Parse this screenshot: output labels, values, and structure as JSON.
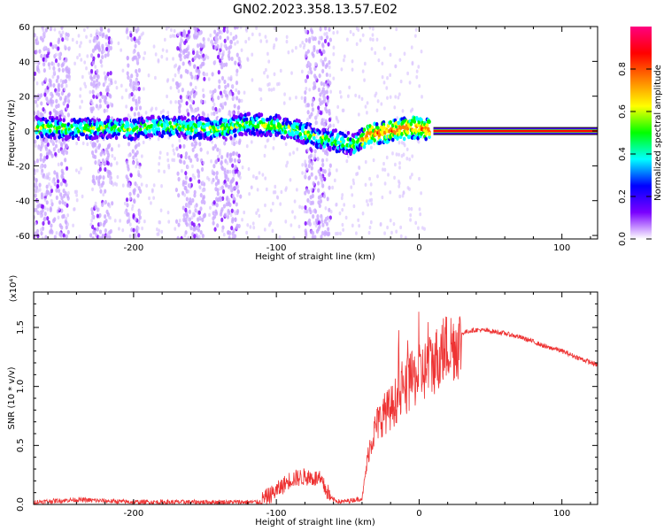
{
  "title": "GN02.2023.358.13.57.E02",
  "chart_data": [
    {
      "type": "heatmap",
      "xlabel": "Height of straight line (km)",
      "ylabel": "Frequency (Hz)",
      "xlim": [
        -270,
        125
      ],
      "ylim": [
        -62,
        60
      ],
      "x_ticks": [
        -200,
        -100,
        0,
        100
      ],
      "x_tick_labels": [
        "-200",
        "-100",
        "0",
        "100"
      ],
      "y_ticks": [
        -60,
        -40,
        -20,
        0,
        20,
        40,
        60
      ],
      "y_tick_labels": [
        "-60",
        "-40",
        "-20",
        "0",
        "20",
        "40",
        "60"
      ],
      "colorbar": {
        "label": "Normalized spectral amplitude",
        "range": [
          0,
          1
        ],
        "ticks": [
          0.0,
          0.2,
          0.4,
          0.6,
          0.8
        ],
        "tick_labels": [
          "0.0",
          "0.2",
          "0.4",
          "0.6",
          "0.8"
        ],
        "colormap": [
          "#ffffff",
          "#7a00ff",
          "#0000ff",
          "#00ffff",
          "#00ff00",
          "#ffff00",
          "#ff8000",
          "#ff0000",
          "#ff0080"
        ]
      },
      "signal_band": {
        "description_free": true,
        "center_hz": 0,
        "points": [
          [
            -265,
            2
          ],
          [
            -240,
            1
          ],
          [
            -220,
            2
          ],
          [
            -200,
            1
          ],
          [
            -180,
            3
          ],
          [
            -160,
            2
          ],
          [
            -140,
            1
          ],
          [
            -120,
            4
          ],
          [
            -100,
            3
          ],
          [
            -85,
            0
          ],
          [
            -70,
            -4
          ],
          [
            -55,
            -6
          ],
          [
            -45,
            -8
          ],
          [
            -35,
            -2
          ],
          [
            -20,
            0
          ],
          [
            -5,
            2
          ],
          [
            5,
            1
          ],
          [
            125,
            0
          ]
        ]
      },
      "noise_columns": [
        [
          -270,
          -245
        ],
        [
          -230,
          -215
        ],
        [
          -205,
          -195
        ],
        [
          -170,
          -150
        ],
        [
          -145,
          -125
        ],
        [
          -80,
          -62
        ]
      ]
    },
    {
      "type": "line",
      "xlabel": "Height of straight line (km)",
      "ylabel": "SNR (10 * v/v)",
      "multiplier": "(x10⁴)",
      "xlim": [
        -270,
        125
      ],
      "ylim": [
        0,
        1.8
      ],
      "x_ticks": [
        -200,
        -100,
        0,
        100
      ],
      "x_tick_labels": [
        "-200",
        "-100",
        "0",
        "100"
      ],
      "y_ticks": [
        0,
        0.5,
        1.0,
        1.5
      ],
      "y_tick_labels": [
        "0.0",
        "0.5",
        "1.0",
        "1.5"
      ],
      "color": "#ee3333",
      "envelope": {
        "x": [
          -270,
          -240,
          -200,
          -150,
          -110,
          -100,
          -90,
          -80,
          -70,
          -62,
          -55,
          -40,
          -35,
          -30,
          -25,
          -20,
          -15,
          -10,
          -5,
          0,
          5,
          10,
          15,
          20,
          25,
          30,
          35,
          40,
          50,
          60,
          70,
          80,
          90,
          95,
          100,
          110,
          125
        ],
        "y": [
          0.02,
          0.04,
          0.02,
          0.02,
          0.02,
          0.1,
          0.2,
          0.22,
          0.2,
          0.05,
          0.02,
          0.05,
          0.5,
          0.7,
          0.8,
          0.85,
          0.95,
          1.0,
          1.1,
          1.15,
          1.2,
          1.25,
          1.35,
          1.4,
          1.42,
          1.45,
          1.47,
          1.48,
          1.47,
          1.45,
          1.42,
          1.38,
          1.33,
          1.32,
          1.3,
          1.25,
          1.18
        ]
      }
    }
  ]
}
